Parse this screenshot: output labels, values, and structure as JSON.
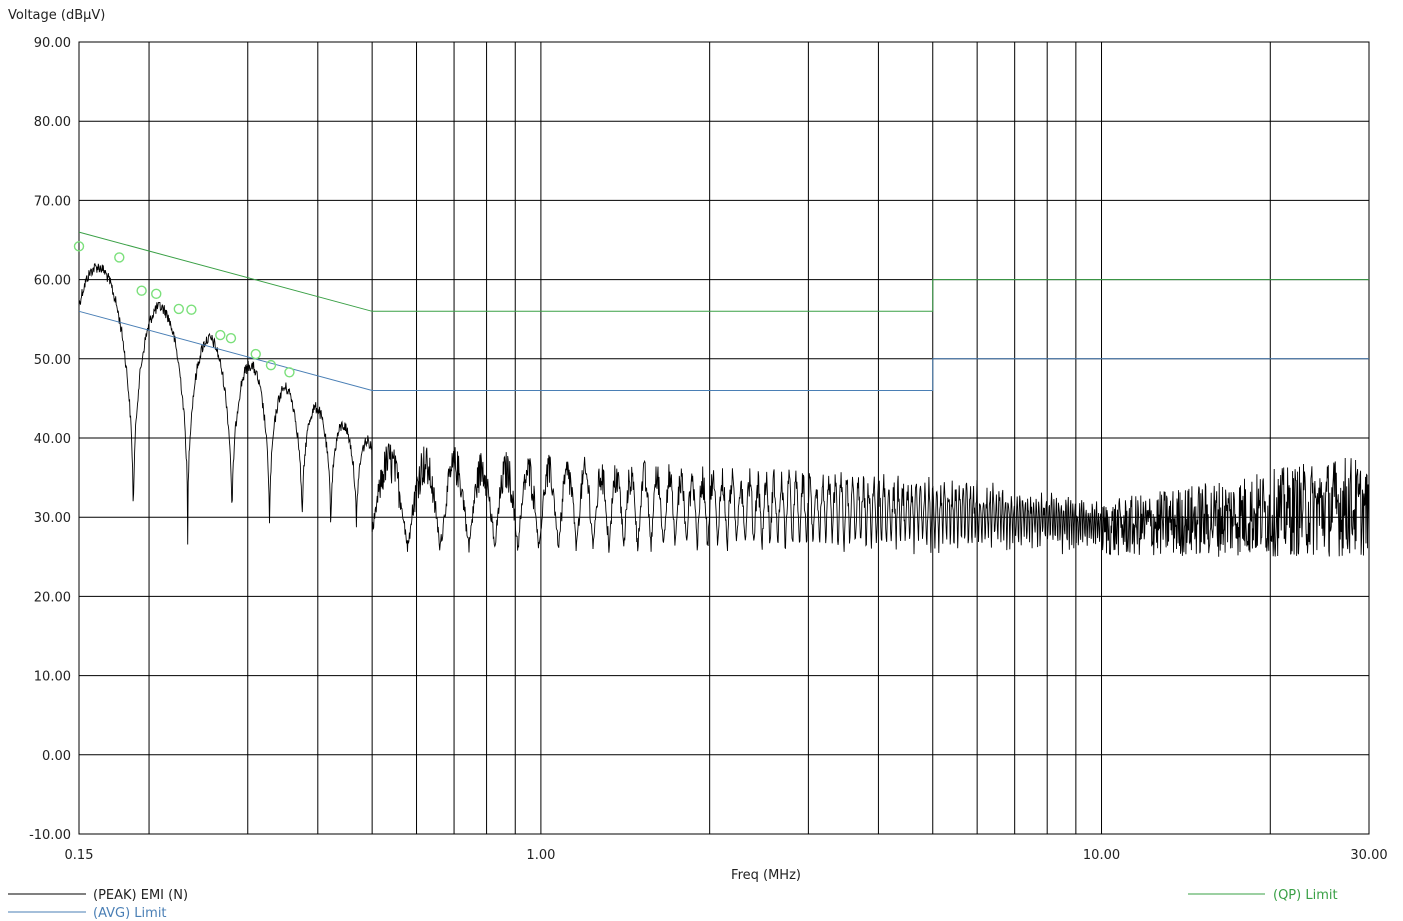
{
  "chart_data": {
    "type": "line",
    "title": "",
    "ylabel": "Voltage (dBµV)",
    "xlabel": "Freq (MHz)",
    "x_scale": "log",
    "xlim": [
      0.15,
      30
    ],
    "ylim": [
      -10,
      90
    ],
    "y_ticks": [
      "90.00",
      "80.00",
      "70.00",
      "60.00",
      "50.00",
      "40.00",
      "30.00",
      "20.00",
      "10.00",
      "0.00",
      "-10.00"
    ],
    "x_tick_labels": [
      {
        "value": 0.15,
        "label": "0.15"
      },
      {
        "value": 1.0,
        "label": "1.00"
      },
      {
        "value": 10.0,
        "label": "10.00"
      },
      {
        "value": 30.0,
        "label": "30.00"
      }
    ],
    "x_gridlines": [
      0.15,
      0.2,
      0.3,
      0.4,
      0.5,
      0.6,
      0.7,
      0.8,
      0.9,
      1,
      2,
      3,
      4,
      5,
      6,
      7,
      8,
      9,
      10,
      20,
      30
    ],
    "grid": true,
    "series": [
      {
        "name": "(PEAK) EMI (N)",
        "color": "#000000",
        "kind": "measured-trace",
        "envelope": [
          {
            "x": 0.15,
            "y": 64.0
          },
          {
            "x": 0.5,
            "y": 40.0
          },
          {
            "x": 1.0,
            "y": 38.0
          },
          {
            "x": 3.0,
            "y": 36.0
          },
          {
            "x": 6.0,
            "y": 35.0
          },
          {
            "x": 10.0,
            "y": 32.0
          },
          {
            "x": 28.0,
            "y": 38.0
          },
          {
            "x": 30.0,
            "y": 36.0
          }
        ]
      },
      {
        "name": "(AVG) Limit",
        "color": "#4a7fb5",
        "points": [
          {
            "x": 0.15,
            "y": 56.0
          },
          {
            "x": 0.5,
            "y": 46.0
          },
          {
            "x": 5.0,
            "y": 46.0
          },
          {
            "x": 5.0,
            "y": 50.0
          },
          {
            "x": 30.0,
            "y": 50.0
          }
        ]
      },
      {
        "name": "(QP) Limit",
        "color": "#3aa046",
        "points": [
          {
            "x": 0.15,
            "y": 66.0
          },
          {
            "x": 0.5,
            "y": 56.0
          },
          {
            "x": 5.0,
            "y": 56.0
          },
          {
            "x": 5.0,
            "y": 60.0
          },
          {
            "x": 30.0,
            "y": 60.0
          }
        ]
      }
    ],
    "markers": {
      "color": "#7be07b",
      "points": [
        {
          "x": 0.15,
          "y": 64.2
        },
        {
          "x": 0.177,
          "y": 62.8
        },
        {
          "x": 0.194,
          "y": 58.6
        },
        {
          "x": 0.206,
          "y": 58.2
        },
        {
          "x": 0.226,
          "y": 56.3
        },
        {
          "x": 0.238,
          "y": 56.2
        },
        {
          "x": 0.268,
          "y": 53.0
        },
        {
          "x": 0.28,
          "y": 52.6
        },
        {
          "x": 0.31,
          "y": 50.6
        },
        {
          "x": 0.33,
          "y": 49.2
        },
        {
          "x": 0.356,
          "y": 48.3
        }
      ]
    },
    "legend": {
      "placement": "bottom",
      "entries": [
        {
          "label": "(PEAK) EMI (N)",
          "color": "#000000"
        },
        {
          "label": "(AVG) Limit",
          "color": "#4a7fb5"
        },
        {
          "label": "(QP) Limit",
          "color": "#3aa046"
        }
      ]
    }
  }
}
